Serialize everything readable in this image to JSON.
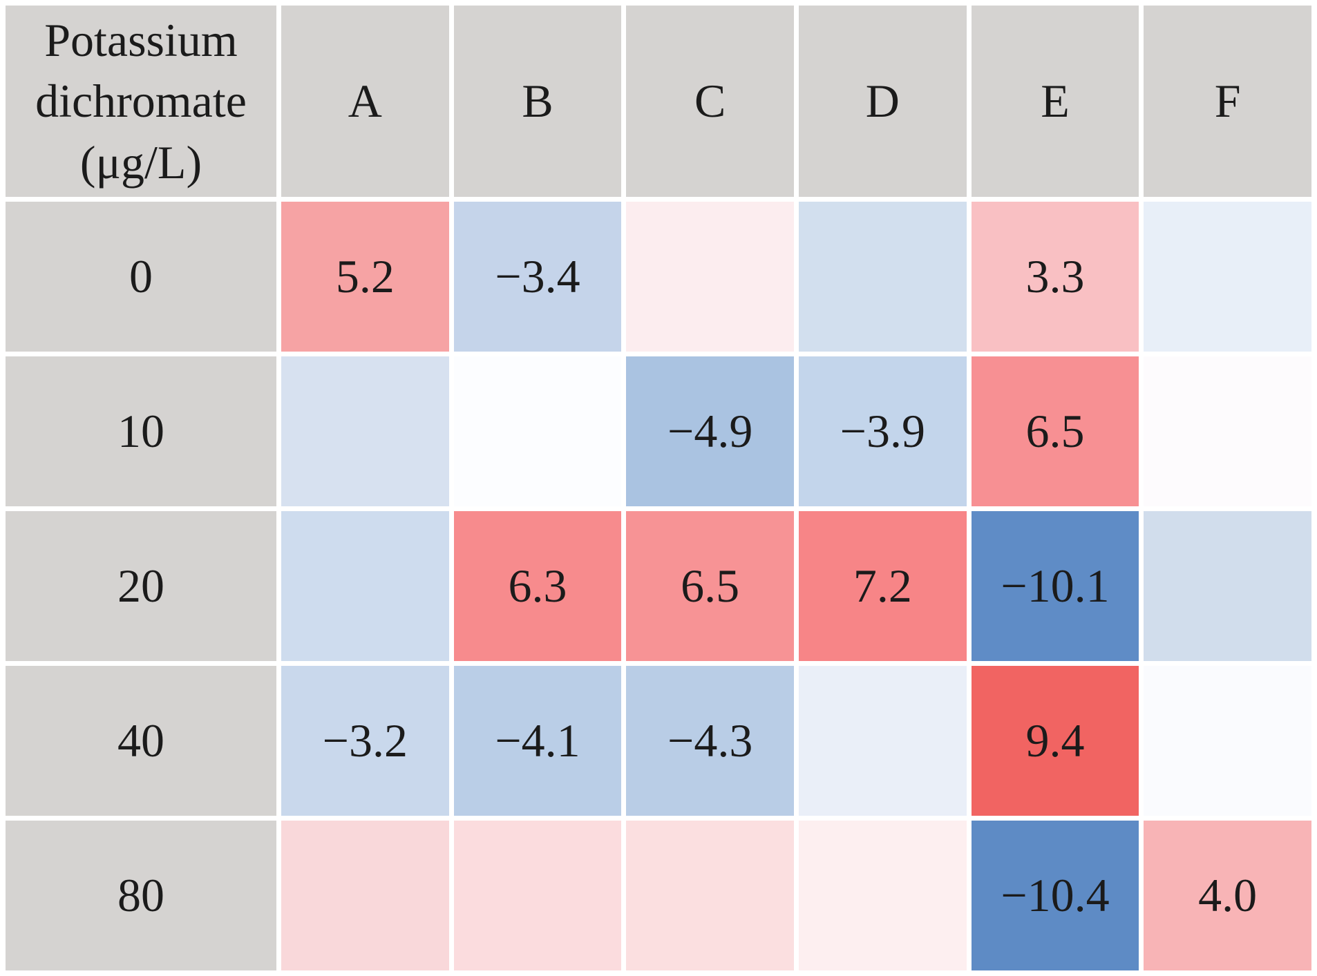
{
  "chart_data": {
    "type": "heatmap",
    "corner_label": "Potassium\ndichromate\n(μg/L)",
    "columns": [
      "A",
      "B",
      "C",
      "D",
      "E",
      "F"
    ],
    "row_labels": [
      "0",
      "10",
      "20",
      "40",
      "80"
    ],
    "row_axis_meaning": "Potassium dichromate concentration (μg/L)",
    "header_bg": "#d5d3d1",
    "text_color": "#1b1b1b",
    "grid_gap_color": "#ffffff",
    "positive_color_hint": "#f16462",
    "negative_color_hint": "#5e8bc5",
    "cells": [
      [
        {
          "label": "5.2",
          "value": 5.2,
          "bg": "#f6a3a4"
        },
        {
          "label": "−3.4",
          "value": -3.4,
          "bg": "#c5d4ea"
        },
        {
          "label": "",
          "value": null,
          "bg": "#fcedef"
        },
        {
          "label": "",
          "value": null,
          "bg": "#d2dfee"
        },
        {
          "label": "3.3",
          "value": 3.3,
          "bg": "#f9c0c3"
        },
        {
          "label": "",
          "value": null,
          "bg": "#e8eff8"
        }
      ],
      [
        {
          "label": "",
          "value": null,
          "bg": "#d7e1f0"
        },
        {
          "label": "",
          "value": null,
          "bg": "#fcfdff"
        },
        {
          "label": "−4.9",
          "value": -4.9,
          "bg": "#aac3e1"
        },
        {
          "label": "−3.9",
          "value": -3.9,
          "bg": "#c3d5eb"
        },
        {
          "label": "6.5",
          "value": 6.5,
          "bg": "#f79093"
        },
        {
          "label": "",
          "value": null,
          "bg": "#fdfbfd"
        }
      ],
      [
        {
          "label": "",
          "value": null,
          "bg": "#cedcee"
        },
        {
          "label": "6.3",
          "value": 6.3,
          "bg": "#f78b8d"
        },
        {
          "label": "6.5",
          "value": 6.5,
          "bg": "#f79395"
        },
        {
          "label": "7.2",
          "value": 7.2,
          "bg": "#f78587"
        },
        {
          "label": "−10.1",
          "value": -10.1,
          "bg": "#5f8cc6"
        },
        {
          "label": "",
          "value": null,
          "bg": "#d1ddec"
        }
      ],
      [
        {
          "label": "−3.2",
          "value": -3.2,
          "bg": "#c9d8ec"
        },
        {
          "label": "−4.1",
          "value": -4.1,
          "bg": "#bacee7"
        },
        {
          "label": "−4.3",
          "value": -4.3,
          "bg": "#b9cde6"
        },
        {
          "label": "",
          "value": null,
          "bg": "#eaeff8"
        },
        {
          "label": "9.4",
          "value": 9.4,
          "bg": "#f16462"
        },
        {
          "label": "",
          "value": null,
          "bg": "#fafbfe"
        }
      ],
      [
        {
          "label": "",
          "value": null,
          "bg": "#f9d8da"
        },
        {
          "label": "",
          "value": null,
          "bg": "#fbdcde"
        },
        {
          "label": "",
          "value": null,
          "bg": "#fbdfe0"
        },
        {
          "label": "",
          "value": null,
          "bg": "#fdeff0"
        },
        {
          "label": "−10.4",
          "value": -10.4,
          "bg": "#5e8bc5"
        },
        {
          "label": "4.0",
          "value": 4.0,
          "bg": "#f8b4b6"
        }
      ]
    ]
  }
}
